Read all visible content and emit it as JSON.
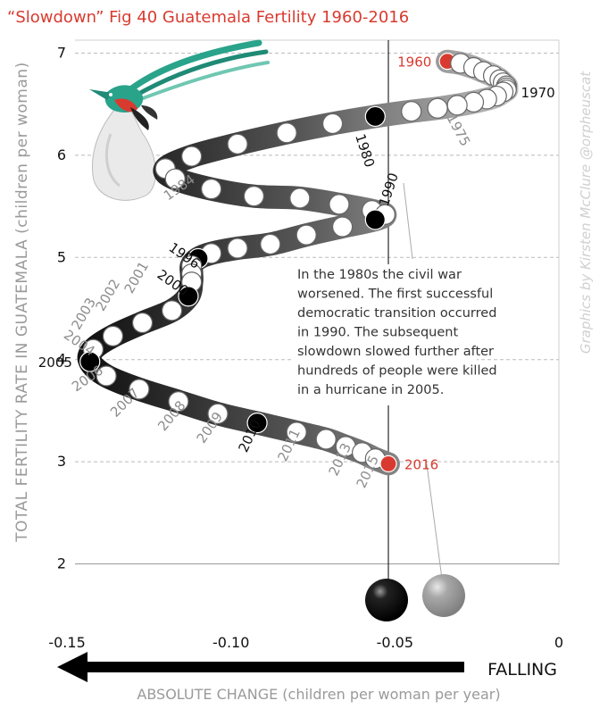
{
  "title": "“Slowdown” Fig 40 Guatemala Fertility 1960-2016",
  "credit": "Graphics by Kirsten McClure @orpheuscat",
  "note_lines": [
    "In the 1980s the civil war",
    "worsened. The first successful",
    "democratic transition occurred",
    "in 1990. The subsequent",
    "slowdown slowed further after",
    "hundreds of people were killed",
    "in a hurricane in 2005."
  ],
  "falling_label": "FALLING",
  "colors": {
    "accent": "#d93a2f",
    "highlight": "#000000",
    "point": "#ffffff",
    "label_gray": "#8c8c8c"
  },
  "chart_data": {
    "type": "scatter",
    "title": "“Slowdown” Fig 40 Guatemala Fertility 1960-2016",
    "xlabel": "ABSOLUTE CHANGE (children per woman per year)",
    "ylabel": "TOTAL FERTILITY RATE IN GUATEMALA (children per woman)",
    "xlim": [
      -0.15,
      0
    ],
    "ylim": [
      2,
      7
    ],
    "xticks": [
      "-0.15",
      "-0.10",
      "-0.05",
      "0"
    ],
    "yticks": [
      "2",
      "3",
      "4",
      "5",
      "6",
      "7"
    ],
    "reference_line_x": -0.052,
    "grid": "horizontal dashed",
    "points": [
      {
        "year": 1960,
        "x": -0.034,
        "y": 6.92,
        "style": "red",
        "label": "1960"
      },
      {
        "year": 1961,
        "x": -0.03,
        "y": 6.9
      },
      {
        "year": 1962,
        "x": -0.026,
        "y": 6.86
      },
      {
        "year": 1963,
        "x": -0.023,
        "y": 6.82
      },
      {
        "year": 1964,
        "x": -0.02,
        "y": 6.78
      },
      {
        "year": 1965,
        "x": -0.018,
        "y": 6.74
      },
      {
        "year": 1966,
        "x": -0.017,
        "y": 6.71
      },
      {
        "year": 1967,
        "x": -0.016,
        "y": 6.68
      },
      {
        "year": 1968,
        "x": -0.016,
        "y": 6.66
      },
      {
        "year": 1969,
        "x": -0.016,
        "y": 6.64
      },
      {
        "year": 1970,
        "x": -0.017,
        "y": 6.62,
        "label": "1970"
      },
      {
        "year": 1971,
        "x": -0.019,
        "y": 6.58
      },
      {
        "year": 1972,
        "x": -0.022,
        "y": 6.55
      },
      {
        "year": 1973,
        "x": -0.026,
        "y": 6.52
      },
      {
        "year": 1974,
        "x": -0.031,
        "y": 6.49
      },
      {
        "year": 1975,
        "x": -0.037,
        "y": 6.46,
        "label": "1975"
      },
      {
        "year": 1976,
        "x": -0.045,
        "y": 6.43
      },
      {
        "year": 1977,
        "x": -0.056,
        "y": 6.38,
        "style": "black"
      },
      {
        "year": 1978,
        "x": -0.069,
        "y": 6.31
      },
      {
        "year": 1979,
        "x": -0.083,
        "y": 6.22
      },
      {
        "year": 1980,
        "x": -0.098,
        "y": 6.11
      },
      {
        "year": 1981,
        "x": -0.112,
        "y": 5.99
      },
      {
        "year": 1982,
        "x": -0.12,
        "y": 5.87
      },
      {
        "year": 1983,
        "x": -0.117,
        "y": 5.77
      },
      {
        "year": 1984,
        "x": -0.106,
        "y": 5.67
      },
      {
        "year": 1985,
        "x": -0.093,
        "y": 5.6
      },
      {
        "year": 1986,
        "x": -0.079,
        "y": 5.58
      },
      {
        "year": 1987,
        "x": -0.067,
        "y": 5.52
      },
      {
        "year": 1988,
        "x": -0.057,
        "y": 5.46
      },
      {
        "year": 1989,
        "x": -0.053,
        "y": 5.42
      },
      {
        "year": 1990,
        "x": -0.056,
        "y": 5.37,
        "style": "black",
        "label": "1990"
      },
      {
        "year": 1991,
        "x": -0.066,
        "y": 5.3
      },
      {
        "year": 1992,
        "x": -0.077,
        "y": 5.22
      },
      {
        "year": 1993,
        "x": -0.088,
        "y": 5.13
      },
      {
        "year": 1994,
        "x": -0.098,
        "y": 5.09
      },
      {
        "year": 1995,
        "x": -0.106,
        "y": 5.04
      },
      {
        "year": 1996,
        "x": -0.11,
        "y": 4.99,
        "style": "black",
        "label": "1996"
      },
      {
        "year": 1997,
        "x": -0.112,
        "y": 4.92
      },
      {
        "year": 1998,
        "x": -0.112,
        "y": 4.84
      },
      {
        "year": 1999,
        "x": -0.112,
        "y": 4.76
      },
      {
        "year": 2000,
        "x": -0.113,
        "y": 4.62,
        "style": "black",
        "label": "2000"
      },
      {
        "year": 2001,
        "x": -0.118,
        "y": 4.48,
        "label": "2001"
      },
      {
        "year": 2002,
        "x": -0.127,
        "y": 4.36,
        "label": "2002"
      },
      {
        "year": 2003,
        "x": -0.136,
        "y": 4.23,
        "label": "2003"
      },
      {
        "year": 2004,
        "x": -0.142,
        "y": 4.1,
        "label": "2004"
      },
      {
        "year": 2005,
        "x": -0.143,
        "y": 3.98,
        "style": "black",
        "label": "2005"
      },
      {
        "year": 2006,
        "x": -0.138,
        "y": 3.84,
        "label": "2006"
      },
      {
        "year": 2007,
        "x": -0.128,
        "y": 3.71,
        "label": "2007"
      },
      {
        "year": 2008,
        "x": -0.116,
        "y": 3.59,
        "label": "2008"
      },
      {
        "year": 2009,
        "x": -0.104,
        "y": 3.47,
        "label": "2009"
      },
      {
        "year": 2010,
        "x": -0.092,
        "y": 3.38,
        "style": "black",
        "label": "2010"
      },
      {
        "year": 2011,
        "x": -0.08,
        "y": 3.29,
        "label": "2011"
      },
      {
        "year": 2012,
        "x": -0.071,
        "y": 3.22
      },
      {
        "year": 2013,
        "x": -0.065,
        "y": 3.15,
        "label": "2013"
      },
      {
        "year": 2014,
        "x": -0.06,
        "y": 3.09
      },
      {
        "year": 2015,
        "x": -0.056,
        "y": 3.03,
        "label": "2015"
      },
      {
        "year": 2016,
        "x": -0.052,
        "y": 2.98,
        "style": "red",
        "label": "2016"
      }
    ]
  }
}
